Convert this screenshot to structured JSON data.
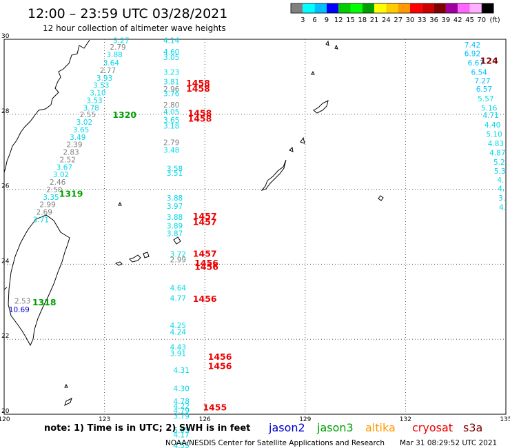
{
  "header": {
    "title": "12:00 – 23:59 UTC 03/28/2021",
    "subtitle": "12 hour collection of altimeter wave heights"
  },
  "colorbar": {
    "colors": [
      "#808080",
      "#00ffff",
      "#00bfff",
      "#0000ff",
      "#00cc00",
      "#00ff00",
      "#00a000",
      "#ffff00",
      "#ffcc00",
      "#ff9900",
      "#ff0000",
      "#cc0000",
      "#800000",
      "#a000a0",
      "#ff66ff",
      "#ffb0ff",
      "#000000"
    ],
    "labels": [
      "3",
      "6",
      "9",
      "12",
      "15",
      "18",
      "21",
      "24",
      "27",
      "30",
      "33",
      "36",
      "39",
      "42",
      "45",
      "70"
    ],
    "unit": "(ft)"
  },
  "map": {
    "lat_range": [
      20,
      30
    ],
    "lon_range": [
      120,
      135
    ],
    "lat_ticks": [
      "20",
      "22",
      "24",
      "26",
      "28",
      "30"
    ],
    "lon_ticks": [
      "120",
      "123",
      "126",
      "129",
      "132",
      "135"
    ],
    "grid": "dotted"
  },
  "tracks": [
    {
      "satellite": "jason3",
      "color": "#00a000",
      "passes": [
        {
          "id": "1320",
          "lat": 27.9,
          "lon": 123.6
        },
        {
          "id": "1319",
          "lat": 25.8,
          "lon": 122.0
        },
        {
          "id": "1318",
          "lat": 22.9,
          "lon": 121.2
        }
      ]
    },
    {
      "satellite": "cryosat",
      "color": "#ee0000",
      "passes": [
        {
          "id": "1458",
          "lat": 28.75,
          "lon": 125.8
        },
        {
          "id": "1458",
          "lat": 28.6,
          "lon": 125.8
        },
        {
          "id": "1458",
          "lat": 27.95,
          "lon": 125.85
        },
        {
          "id": "1458",
          "lat": 27.8,
          "lon": 125.85
        },
        {
          "id": "1457",
          "lat": 25.2,
          "lon": 126.0
        },
        {
          "id": "1457",
          "lat": 25.05,
          "lon": 126.0
        },
        {
          "id": "1457",
          "lat": 24.2,
          "lon": 126.0
        },
        {
          "id": "1456",
          "lat": 23.95,
          "lon": 126.05
        },
        {
          "id": "1456",
          "lat": 23.85,
          "lon": 126.05
        },
        {
          "id": "1456",
          "lat": 23.0,
          "lon": 126.0
        },
        {
          "id": "1456",
          "lat": 21.45,
          "lon": 126.45
        },
        {
          "id": "1456",
          "lat": 21.2,
          "lon": 126.45
        },
        {
          "id": "1455",
          "lat": 20.1,
          "lon": 126.3
        }
      ]
    },
    {
      "satellite": "s3a",
      "color": "#800000",
      "passes": [
        {
          "id": "124",
          "lat": 29.35,
          "lon": 134.5
        }
      ]
    }
  ],
  "wave_labels": [
    {
      "v": "3.27",
      "lat": 29.9,
      "lon": 123.5,
      "c": "#00d8e8"
    },
    {
      "v": "2.79",
      "lat": 29.72,
      "lon": 123.4,
      "c": "#808080"
    },
    {
      "v": "3.88",
      "lat": 29.52,
      "lon": 123.3,
      "c": "#00d8e8"
    },
    {
      "v": "3.64",
      "lat": 29.3,
      "lon": 123.2,
      "c": "#00d8e8"
    },
    {
      "v": "2.77",
      "lat": 29.1,
      "lon": 123.1,
      "c": "#808080"
    },
    {
      "v": "3.93",
      "lat": 28.9,
      "lon": 123.0,
      "c": "#00d8e8"
    },
    {
      "v": "3.53",
      "lat": 28.7,
      "lon": 122.9,
      "c": "#00d8e8"
    },
    {
      "v": "3.10",
      "lat": 28.5,
      "lon": 122.8,
      "c": "#00d8e8"
    },
    {
      "v": "3.53",
      "lat": 28.3,
      "lon": 122.7,
      "c": "#00d8e8"
    },
    {
      "v": "3.78",
      "lat": 28.1,
      "lon": 122.6,
      "c": "#00d8e8"
    },
    {
      "v": "2.55",
      "lat": 27.92,
      "lon": 122.5,
      "c": "#808080"
    },
    {
      "v": "3.02",
      "lat": 27.72,
      "lon": 122.4,
      "c": "#00d8e8"
    },
    {
      "v": "3.65",
      "lat": 27.52,
      "lon": 122.3,
      "c": "#00d8e8"
    },
    {
      "v": "3.49",
      "lat": 27.32,
      "lon": 122.2,
      "c": "#00d8e8"
    },
    {
      "v": "2.39",
      "lat": 27.12,
      "lon": 122.1,
      "c": "#808080"
    },
    {
      "v": "2.83",
      "lat": 26.92,
      "lon": 122.0,
      "c": "#808080"
    },
    {
      "v": "2.52",
      "lat": 26.72,
      "lon": 121.9,
      "c": "#808080"
    },
    {
      "v": "3.67",
      "lat": 26.52,
      "lon": 121.8,
      "c": "#00d8e8"
    },
    {
      "v": "3.02",
      "lat": 26.32,
      "lon": 121.7,
      "c": "#00d8e8"
    },
    {
      "v": "2.46",
      "lat": 26.12,
      "lon": 121.6,
      "c": "#808080"
    },
    {
      "v": "2.50",
      "lat": 25.92,
      "lon": 121.5,
      "c": "#808080"
    },
    {
      "v": "3.35",
      "lat": 25.72,
      "lon": 121.4,
      "c": "#00d8e8"
    },
    {
      "v": "2.99",
      "lat": 25.52,
      "lon": 121.3,
      "c": "#808080"
    },
    {
      "v": "2.69",
      "lat": 25.32,
      "lon": 121.2,
      "c": "#808080"
    },
    {
      "v": "3.71",
      "lat": 25.12,
      "lon": 121.1,
      "c": "#00d8e8"
    },
    {
      "v": "2.53",
      "lat": 22.95,
      "lon": 120.55,
      "c": "#808080"
    },
    {
      "v": "10.69",
      "lat": 22.72,
      "lon": 120.45,
      "c": "#0000cc"
    },
    {
      "v": "4.14",
      "lat": 29.9,
      "lon": 125.0,
      "c": "#00d8e8"
    },
    {
      "v": "4.60",
      "lat": 29.6,
      "lon": 125.0,
      "c": "#00d8e8"
    },
    {
      "v": "3.05",
      "lat": 29.45,
      "lon": 125.0,
      "c": "#00d8e8"
    },
    {
      "v": "3.23",
      "lat": 29.05,
      "lon": 125.0,
      "c": "#00d8e8"
    },
    {
      "v": "3.81",
      "lat": 28.8,
      "lon": 125.0,
      "c": "#00d8e8"
    },
    {
      "v": "2.96",
      "lat": 28.6,
      "lon": 125.0,
      "c": "#808080"
    },
    {
      "v": "3.76",
      "lat": 28.48,
      "lon": 125.0,
      "c": "#00d8e8"
    },
    {
      "v": "2.80",
      "lat": 28.18,
      "lon": 125.0,
      "c": "#808080"
    },
    {
      "v": "4.05",
      "lat": 28.0,
      "lon": 125.0,
      "c": "#00d8e8"
    },
    {
      "v": "3.65",
      "lat": 27.78,
      "lon": 125.0,
      "c": "#00d8e8"
    },
    {
      "v": "3.18",
      "lat": 27.62,
      "lon": 125.0,
      "c": "#00d8e8"
    },
    {
      "v": "2.79",
      "lat": 27.18,
      "lon": 125.0,
      "c": "#808080"
    },
    {
      "v": "3.48",
      "lat": 26.98,
      "lon": 125.0,
      "c": "#00d8e8"
    },
    {
      "v": "3.58",
      "lat": 26.48,
      "lon": 125.1,
      "c": "#00d8e8"
    },
    {
      "v": "3.51",
      "lat": 26.36,
      "lon": 125.1,
      "c": "#00d8e8"
    },
    {
      "v": "3.88",
      "lat": 25.7,
      "lon": 125.1,
      "c": "#00d8e8"
    },
    {
      "v": "3.97",
      "lat": 25.48,
      "lon": 125.1,
      "c": "#00d8e8"
    },
    {
      "v": "3.88",
      "lat": 25.18,
      "lon": 125.1,
      "c": "#00d8e8"
    },
    {
      "v": "3.89",
      "lat": 24.95,
      "lon": 125.1,
      "c": "#00d8e8"
    },
    {
      "v": "3.87",
      "lat": 24.75,
      "lon": 125.1,
      "c": "#00d8e8"
    },
    {
      "v": "3.72",
      "lat": 24.2,
      "lon": 125.2,
      "c": "#00d8e8"
    },
    {
      "v": "2.99",
      "lat": 24.05,
      "lon": 125.2,
      "c": "#808080"
    },
    {
      "v": "4.64",
      "lat": 23.3,
      "lon": 125.2,
      "c": "#00d8e8"
    },
    {
      "v": "4.77",
      "lat": 23.02,
      "lon": 125.2,
      "c": "#00d8e8"
    },
    {
      "v": "4.25",
      "lat": 22.3,
      "lon": 125.2,
      "c": "#00d8e8"
    },
    {
      "v": "4.24",
      "lat": 22.12,
      "lon": 125.2,
      "c": "#00d8e8"
    },
    {
      "v": "4.43",
      "lat": 21.72,
      "lon": 125.2,
      "c": "#00d8e8"
    },
    {
      "v": "3.91",
      "lat": 21.55,
      "lon": 125.2,
      "c": "#00d8e8"
    },
    {
      "v": "4.31",
      "lat": 21.1,
      "lon": 125.3,
      "c": "#00d8e8"
    },
    {
      "v": "4.30",
      "lat": 20.62,
      "lon": 125.3,
      "c": "#00d8e8"
    },
    {
      "v": "4.78",
      "lat": 20.28,
      "lon": 125.3,
      "c": "#00d8e8"
    },
    {
      "v": "4.22",
      "lat": 20.15,
      "lon": 125.3,
      "c": "#00d8e8"
    },
    {
      "v": "4.79",
      "lat": 20.03,
      "lon": 125.3,
      "c": "#00d8e8"
    },
    {
      "v": "3.79",
      "lat": 19.88,
      "lon": 125.3,
      "c": "#00d8e8"
    },
    {
      "v": "5.05",
      "lat": 19.5,
      "lon": 125.3,
      "c": "#00d8e8"
    },
    {
      "v": "4.17",
      "lat": 19.38,
      "lon": 125.3,
      "c": "#00d8e8"
    },
    {
      "v": "4.55",
      "lat": 19.1,
      "lon": 125.3,
      "c": "#00d8e8"
    },
    {
      "v": "7.42",
      "lat": 29.78,
      "lon": 134.0,
      "c": "#00bfff"
    },
    {
      "v": "6.92",
      "lat": 29.55,
      "lon": 134.0,
      "c": "#00bfff"
    },
    {
      "v": "6.67",
      "lat": 29.3,
      "lon": 134.1,
      "c": "#00bfff"
    },
    {
      "v": "6.54",
      "lat": 29.05,
      "lon": 134.2,
      "c": "#00bfff"
    },
    {
      "v": "7.27",
      "lat": 28.82,
      "lon": 134.3,
      "c": "#00bfff"
    },
    {
      "v": "6.57",
      "lat": 28.6,
      "lon": 134.35,
      "c": "#00bfff"
    },
    {
      "v": "5.57",
      "lat": 28.35,
      "lon": 134.4,
      "c": "#00d8e8"
    },
    {
      "v": "5.16",
      "lat": 28.1,
      "lon": 134.5,
      "c": "#00d8e8"
    },
    {
      "v": "4.71",
      "lat": 27.9,
      "lon": 134.55,
      "c": "#00d8e8"
    },
    {
      "v": "4.40",
      "lat": 27.65,
      "lon": 134.6,
      "c": "#00d8e8"
    },
    {
      "v": "5.10",
      "lat": 27.4,
      "lon": 134.65,
      "c": "#00d8e8"
    },
    {
      "v": "4.83",
      "lat": 27.15,
      "lon": 134.7,
      "c": "#00d8e8"
    },
    {
      "v": "4.87",
      "lat": 26.9,
      "lon": 134.75,
      "c": "#00d8e8"
    },
    {
      "v": "5.2",
      "lat": 26.65,
      "lon": 134.8,
      "c": "#00d8e8"
    },
    {
      "v": "5.3",
      "lat": 26.42,
      "lon": 134.82,
      "c": "#00d8e8"
    },
    {
      "v": "4.",
      "lat": 26.18,
      "lon": 134.84,
      "c": "#00d8e8"
    },
    {
      "v": "4.",
      "lat": 25.95,
      "lon": 134.86,
      "c": "#00d8e8"
    },
    {
      "v": "3.",
      "lat": 25.7,
      "lon": 134.88,
      "c": "#00d8e8"
    },
    {
      "v": "4.",
      "lat": 25.45,
      "lon": 134.9,
      "c": "#00d8e8"
    }
  ],
  "note": "note:  1) Time is in UTC;  2) SWH is in feet",
  "legend": [
    {
      "name": "jason2",
      "color": "#0000cc"
    },
    {
      "name": "jason3",
      "color": "#00a000"
    },
    {
      "name": "altika",
      "color": "#ff9900"
    },
    {
      "name": "cryosat",
      "color": "#ee0000"
    },
    {
      "name": "s3a",
      "color": "#800000"
    }
  ],
  "footer": {
    "credit": "NOAA/NESDIS Center for Satellite Applications and Research",
    "timestamp": "Mar 31 08:29:52 UTC 2021"
  }
}
